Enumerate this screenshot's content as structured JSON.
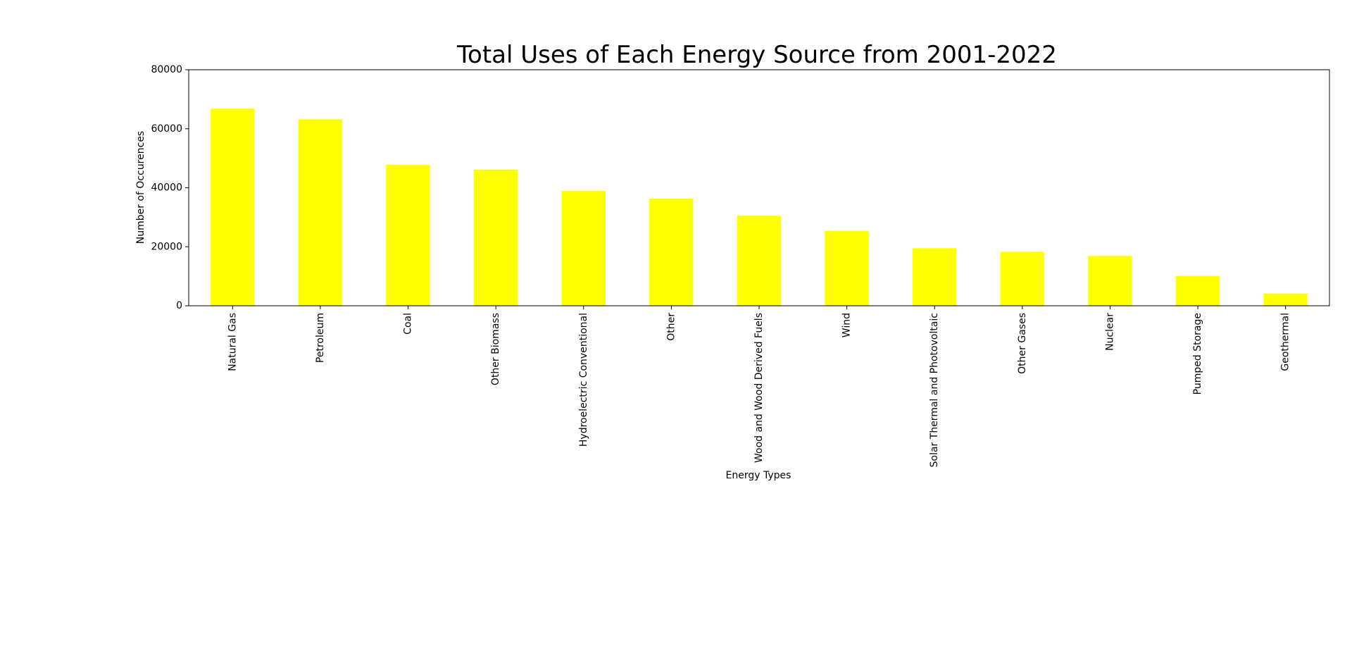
{
  "chart_data": {
    "type": "bar",
    "title": "Total Uses of Each Energy Source from 2001-2022",
    "xlabel": "Energy Types",
    "ylabel": "Number of Occurences",
    "categories": [
      "Natural Gas",
      "Petroleum",
      "Coal",
      "Other Biomass",
      "Hydroelectric Conventional",
      "Other",
      "Wood and Wood Derived Fuels",
      "Wind",
      "Solar Thermal and Photovoltaic",
      "Other Gases",
      "Nuclear",
      "Pumped Storage",
      "Geothermal"
    ],
    "values": [
      66800,
      63200,
      47800,
      46100,
      38900,
      36300,
      30500,
      25400,
      19500,
      18300,
      16900,
      10100,
      4100
    ],
    "ylim": [
      0,
      80000
    ],
    "yticks": [
      "0",
      "20000",
      "40000",
      "60000",
      "80000"
    ],
    "bar_color": "#ffff00",
    "grid": false,
    "legend": "none"
  }
}
